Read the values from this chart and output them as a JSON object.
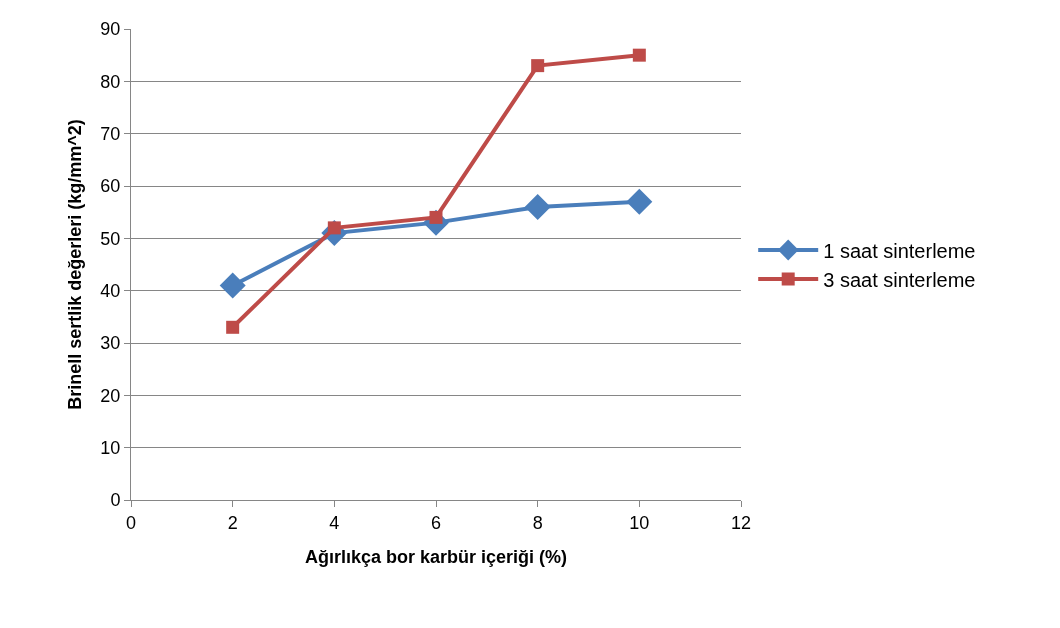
{
  "chart_data": {
    "type": "line",
    "xlabel": "Ağırlıkça bor karbür içeriği (%)",
    "ylabel": "Brinell sertlik değerleri (kg/mm^2)",
    "x": [
      2,
      4,
      6,
      8,
      10
    ],
    "series": [
      {
        "name": "1 saat sinterleme",
        "color": "#4a7ebb",
        "marker": "diamond",
        "values": [
          41,
          51,
          53,
          56,
          57
        ]
      },
      {
        "name": "3 saat sinterleme",
        "color": "#be4b48",
        "marker": "square",
        "values": [
          33,
          52,
          54,
          83,
          85
        ]
      }
    ],
    "xlim": [
      0,
      12
    ],
    "xticks": [
      0,
      2,
      4,
      6,
      8,
      10,
      12
    ],
    "ylim": [
      0,
      90
    ],
    "yticks": [
      0,
      10,
      20,
      30,
      40,
      50,
      60,
      70,
      80,
      90
    ],
    "grid": "y",
    "legend": "right",
    "line_style": "solid"
  }
}
